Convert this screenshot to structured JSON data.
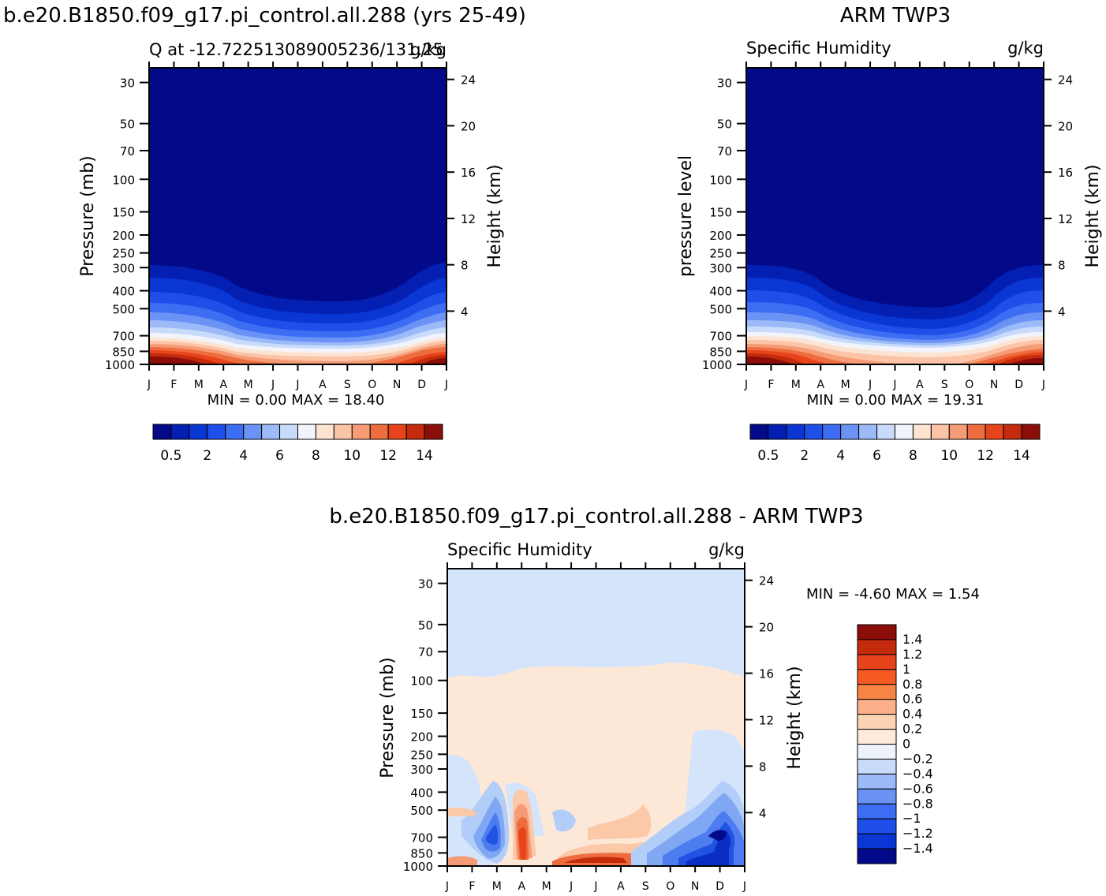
{
  "chart_data": [
    {
      "type": "heatmap",
      "name": "model",
      "main_title": "b.e20.B1850.f09_g17.pi_control.all.288 (yrs 25-49)",
      "left_title": "Q at -12.722513089005236/131.25",
      "right_title": "g/kg",
      "ylabel": "Pressure (mb)",
      "ylabel_right": "Height (km)",
      "min_max": "MIN = 0.00 MAX = 18.40",
      "x_ticks": [
        "J",
        "F",
        "M",
        "A",
        "M",
        "J",
        "J",
        "A",
        "S",
        "O",
        "N",
        "D",
        "J"
      ],
      "y_ticks": [
        "30",
        "50",
        "70",
        "100",
        "150",
        "200",
        "250",
        "300",
        "400",
        "500",
        "700",
        "850",
        "1000"
      ],
      "y_ticks_right": [
        "24",
        "20",
        "16",
        "12",
        "8",
        "4"
      ],
      "colorbar_labels": [
        "0.5",
        "2",
        "4",
        "6",
        "8",
        "10",
        "12",
        "14"
      ],
      "colorbar_colors": [
        "#020a8a",
        "#0320b2",
        "#0a36d4",
        "#1e4fe8",
        "#3d6df2",
        "#6b92f5",
        "#9bbaf7",
        "#c9dbfb",
        "#f2f4fb",
        "#fde4d2",
        "#fbc4a7",
        "#f59b76",
        "#ee6d3f",
        "#e8441c",
        "#c42a0c",
        "#8b0e0a"
      ],
      "ylim": [
        30,
        1000
      ]
    },
    {
      "type": "heatmap",
      "name": "obs",
      "main_title": "ARM TWP3",
      "left_title": "Specific Humidity",
      "right_title": "g/kg",
      "ylabel": "pressure level",
      "ylabel_right": "Height (km)",
      "min_max": "MIN = 0.00 MAX = 19.31",
      "x_ticks": [
        "J",
        "F",
        "M",
        "A",
        "M",
        "J",
        "J",
        "A",
        "S",
        "O",
        "N",
        "D",
        "J"
      ],
      "y_ticks": [
        "30",
        "50",
        "70",
        "100",
        "150",
        "200",
        "250",
        "300",
        "400",
        "500",
        "700",
        "850",
        "1000"
      ],
      "y_ticks_right": [
        "24",
        "20",
        "16",
        "12",
        "8",
        "4"
      ],
      "colorbar_labels": [
        "0.5",
        "2",
        "4",
        "6",
        "8",
        "10",
        "12",
        "14"
      ],
      "ylim": [
        30,
        1000
      ]
    },
    {
      "type": "heatmap",
      "name": "diff",
      "main_title": "b.e20.B1850.f09_g17.pi_control.all.288 - ARM TWP3",
      "left_title": "Specific Humidity",
      "right_title": "g/kg",
      "ylabel": "Pressure (mb)",
      "ylabel_right": "Height (km)",
      "min_max": "MIN = -4.60 MAX = 1.54",
      "x_ticks": [
        "J",
        "F",
        "M",
        "A",
        "M",
        "J",
        "J",
        "A",
        "S",
        "O",
        "N",
        "D",
        "J"
      ],
      "y_ticks": [
        "30",
        "50",
        "70",
        "100",
        "150",
        "200",
        "250",
        "300",
        "400",
        "500",
        "700",
        "850",
        "1000"
      ],
      "y_ticks_right": [
        "24",
        "20",
        "16",
        "12",
        "8",
        "4"
      ],
      "colorbar_labels": [
        "1.4",
        "1.2",
        "1",
        "0.8",
        "0.6",
        "0.4",
        "0.2",
        "0",
        "-0.2",
        "-0.4",
        "-0.6",
        "-0.8",
        "-1",
        "-1.2",
        "-1.4"
      ],
      "colorbar_colors": [
        "#8b0e0a",
        "#c42a0c",
        "#e8441c",
        "#f55a22",
        "#f78445",
        "#fbb08a",
        "#fdd3b5",
        "#fdeadb",
        "#eef3fb",
        "#c9dbfb",
        "#9bbaf7",
        "#6b92f5",
        "#3d6df2",
        "#1e4fe8",
        "#0a36d4",
        "#020a8a"
      ],
      "ylim": [
        30,
        1000
      ]
    }
  ]
}
